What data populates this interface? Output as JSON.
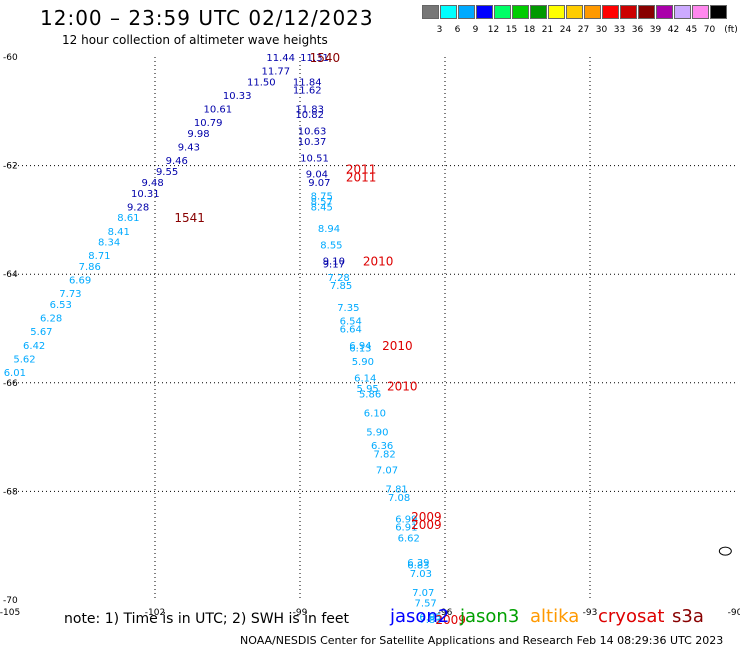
{
  "title": "12:00 – 23:59 UTC 02/12/2023",
  "subtitle": "12 hour collection of altimeter wave heights",
  "note": "note:  1) Time is in UTC;  2) SWH is in feet",
  "footer": "NOAA/NESDIS Center for Satellite Applications and Research    Feb 14 08:29:36 UTC 2023",
  "satellites": [
    {
      "name": "jason2",
      "color": "#0000ff"
    },
    {
      "name": "jason3",
      "color": "#00a000"
    },
    {
      "name": "altika",
      "color": "#ff9900"
    },
    {
      "name": "cryosat",
      "color": "#dd0000"
    },
    {
      "name": "s3a",
      "color": "#880000"
    }
  ],
  "legend": {
    "colors": [
      "#777777",
      "#00ffff",
      "#00aaff",
      "#0000ff",
      "#00ff66",
      "#00cc00",
      "#009900",
      "#ffff00",
      "#ffcc00",
      "#ff9900",
      "#ff0000",
      "#cc0000",
      "#880000",
      "#aa00aa",
      "#ccaaff",
      "#ff88ee",
      "#000000"
    ],
    "labels": [
      "",
      "3",
      "6",
      "9",
      "12",
      "15",
      "18",
      "21",
      "24",
      "27",
      "30",
      "33",
      "36",
      "39",
      "42",
      "45",
      "70",
      "(ft)"
    ]
  },
  "chart_data": {
    "type": "scatter",
    "xlim": [
      -105,
      -90
    ],
    "ylim": [
      -70,
      -60
    ],
    "x_ticks": [
      -105,
      -102,
      -99,
      -96,
      -93,
      -90
    ],
    "y_ticks": [
      -60,
      -62,
      -64,
      -66,
      -68,
      -70
    ],
    "x_tick_labels": [
      "-105",
      "-102",
      "-99",
      "-96",
      "-93",
      "-90"
    ],
    "y_tick_labels": [
      "-60",
      "-62",
      "-64",
      "-66",
      "-68",
      "-70"
    ],
    "grid": true,
    "points": [
      {
        "x": -99.4,
        "y": -60.0,
        "v": "11.44",
        "c": "#0000aa"
      },
      {
        "x": -98.7,
        "y": -60.0,
        "v": "11.31",
        "c": "#0000aa"
      },
      {
        "x": -99.5,
        "y": -60.25,
        "v": "11.77",
        "c": "#0000aa"
      },
      {
        "x": -99.8,
        "y": -60.45,
        "v": "11.50",
        "c": "#0000aa"
      },
      {
        "x": -100.3,
        "y": -60.7,
        "v": "10.33",
        "c": "#0000aa"
      },
      {
        "x": -100.7,
        "y": -60.95,
        "v": "10.61",
        "c": "#0000aa"
      },
      {
        "x": -100.9,
        "y": -61.2,
        "v": "10.79",
        "c": "#0000aa"
      },
      {
        "x": -101.1,
        "y": -61.4,
        "v": "9.98",
        "c": "#0000aa"
      },
      {
        "x": -101.3,
        "y": -61.65,
        "v": "9.43",
        "c": "#0000aa"
      },
      {
        "x": -101.55,
        "y": -61.9,
        "v": "9.46",
        "c": "#0000aa"
      },
      {
        "x": -101.75,
        "y": -62.1,
        "v": "9.55",
        "c": "#0000aa"
      },
      {
        "x": -102.05,
        "y": -62.3,
        "v": "9.48",
        "c": "#0000aa"
      },
      {
        "x": -102.2,
        "y": -62.5,
        "v": "10.31",
        "c": "#0000aa"
      },
      {
        "x": -102.35,
        "y": -62.75,
        "v": "9.28",
        "c": "#0000aa"
      },
      {
        "x": -102.55,
        "y": -62.95,
        "v": "8.61",
        "c": "#00aaff"
      },
      {
        "x": -102.75,
        "y": -63.2,
        "v": "8.41",
        "c": "#00aaff"
      },
      {
        "x": -102.95,
        "y": -63.4,
        "v": "8.34",
        "c": "#00aaff"
      },
      {
        "x": -103.15,
        "y": -63.65,
        "v": "8.71",
        "c": "#00aaff"
      },
      {
        "x": -103.35,
        "y": -63.85,
        "v": "7.86",
        "c": "#00aaff"
      },
      {
        "x": -103.55,
        "y": -64.1,
        "v": "6.69",
        "c": "#00aaff"
      },
      {
        "x": -103.75,
        "y": -64.35,
        "v": "7.73",
        "c": "#00aaff"
      },
      {
        "x": -103.95,
        "y": -64.55,
        "v": "6.53",
        "c": "#00aaff"
      },
      {
        "x": -104.15,
        "y": -64.8,
        "v": "6.28",
        "c": "#00aaff"
      },
      {
        "x": -104.35,
        "y": -65.05,
        "v": "5.67",
        "c": "#00aaff"
      },
      {
        "x": -104.5,
        "y": -65.3,
        "v": "6.42",
        "c": "#00aaff"
      },
      {
        "x": -104.7,
        "y": -65.55,
        "v": "5.62",
        "c": "#00aaff"
      },
      {
        "x": -104.9,
        "y": -65.8,
        "v": "6.01",
        "c": "#00aaff"
      },
      {
        "x": -98.85,
        "y": -60.45,
        "v": "11.84",
        "c": "#0000aa"
      },
      {
        "x": -98.85,
        "y": -60.6,
        "v": "11.62",
        "c": "#0000aa"
      },
      {
        "x": -98.8,
        "y": -60.95,
        "v": "11.83",
        "c": "#0000aa"
      },
      {
        "x": -98.8,
        "y": -61.05,
        "v": "10.82",
        "c": "#0000aa"
      },
      {
        "x": -98.75,
        "y": -61.35,
        "v": "10.63",
        "c": "#0000aa"
      },
      {
        "x": -98.75,
        "y": -61.55,
        "v": "10.37",
        "c": "#0000aa"
      },
      {
        "x": -98.7,
        "y": -61.85,
        "v": "10.51",
        "c": "#0000aa"
      },
      {
        "x": -98.65,
        "y": -62.15,
        "v": "9.04",
        "c": "#0000aa"
      },
      {
        "x": -98.6,
        "y": -62.3,
        "v": "9.07",
        "c": "#0000aa"
      },
      {
        "x": -98.55,
        "y": -62.55,
        "v": "8.75",
        "c": "#00aaff"
      },
      {
        "x": -98.55,
        "y": -62.65,
        "v": "8.57",
        "c": "#00aaff"
      },
      {
        "x": -98.55,
        "y": -62.75,
        "v": "8.45",
        "c": "#00aaff"
      },
      {
        "x": -98.4,
        "y": -63.15,
        "v": "8.94",
        "c": "#00aaff"
      },
      {
        "x": -98.35,
        "y": -63.45,
        "v": "8.55",
        "c": "#00aaff"
      },
      {
        "x": -98.3,
        "y": -63.75,
        "v": "9.10",
        "c": "#0000aa"
      },
      {
        "x": -98.3,
        "y": -63.8,
        "v": "9.17",
        "c": "#0000aa"
      },
      {
        "x": -98.2,
        "y": -64.05,
        "v": "7.28",
        "c": "#00aaff"
      },
      {
        "x": -98.15,
        "y": -64.2,
        "v": "7.85",
        "c": "#00aaff"
      },
      {
        "x": -98.0,
        "y": -64.6,
        "v": "7.35",
        "c": "#00aaff"
      },
      {
        "x": -97.95,
        "y": -64.85,
        "v": "6.54",
        "c": "#00aaff"
      },
      {
        "x": -97.95,
        "y": -65.0,
        "v": "6.64",
        "c": "#00aaff"
      },
      {
        "x": -97.75,
        "y": -65.3,
        "v": "6.94",
        "c": "#00aaff"
      },
      {
        "x": -97.75,
        "y": -65.35,
        "v": "6.13",
        "c": "#00aaff"
      },
      {
        "x": -97.7,
        "y": -65.6,
        "v": "5.90",
        "c": "#00aaff"
      },
      {
        "x": -97.65,
        "y": -65.9,
        "v": "6.14",
        "c": "#00aaff"
      },
      {
        "x": -97.6,
        "y": -66.1,
        "v": "5.95",
        "c": "#00aaff"
      },
      {
        "x": -97.55,
        "y": -66.2,
        "v": "5.86",
        "c": "#00aaff"
      },
      {
        "x": -97.45,
        "y": -66.55,
        "v": "6.10",
        "c": "#00aaff"
      },
      {
        "x": -97.4,
        "y": -66.9,
        "v": "5.90",
        "c": "#00aaff"
      },
      {
        "x": -97.3,
        "y": -67.15,
        "v": "6.36",
        "c": "#00aaff"
      },
      {
        "x": -97.25,
        "y": -67.3,
        "v": "7.82",
        "c": "#00aaff"
      },
      {
        "x": -97.2,
        "y": -67.6,
        "v": "7.07",
        "c": "#00aaff"
      },
      {
        "x": -97.0,
        "y": -67.95,
        "v": "7.81",
        "c": "#00aaff"
      },
      {
        "x": -96.95,
        "y": -68.1,
        "v": "7.08",
        "c": "#00aaff"
      },
      {
        "x": -96.8,
        "y": -68.5,
        "v": "6.99",
        "c": "#00aaff"
      },
      {
        "x": -96.8,
        "y": -68.65,
        "v": "6.91",
        "c": "#00aaff"
      },
      {
        "x": -96.75,
        "y": -68.85,
        "v": "6.62",
        "c": "#00aaff"
      },
      {
        "x": -96.55,
        "y": -69.3,
        "v": "6.39",
        "c": "#00aaff"
      },
      {
        "x": -96.55,
        "y": -69.35,
        "v": "6.83",
        "c": "#00aaff"
      },
      {
        "x": -96.5,
        "y": -69.5,
        "v": "7.03",
        "c": "#00aaff"
      },
      {
        "x": -96.45,
        "y": -69.85,
        "v": "7.07",
        "c": "#00aaff"
      },
      {
        "x": -96.4,
        "y": -70.05,
        "v": "7.57",
        "c": "#00aaff"
      },
      {
        "x": -96.3,
        "y": -70.3,
        "v": "6.95",
        "c": "#00aaff"
      },
      {
        "x": -96.3,
        "y": -70.35,
        "v": "7.83",
        "c": "#00aaff"
      }
    ],
    "time_labels": [
      {
        "x": -98.8,
        "y": -60.0,
        "v": "1540",
        "c": "#880000"
      },
      {
        "x": -101.6,
        "y": -62.95,
        "v": "1541",
        "c": "#880000"
      },
      {
        "x": -98.05,
        "y": -62.05,
        "v": "2011",
        "c": "#dd0000"
      },
      {
        "x": -98.05,
        "y": -62.2,
        "v": "2011",
        "c": "#dd0000"
      },
      {
        "x": -97.7,
        "y": -63.75,
        "v": "2010",
        "c": "#dd0000"
      },
      {
        "x": -97.3,
        "y": -65.3,
        "v": "2010",
        "c": "#dd0000"
      },
      {
        "x": -97.2,
        "y": -66.05,
        "v": "2010",
        "c": "#dd0000"
      },
      {
        "x": -96.7,
        "y": -68.45,
        "v": "2009",
        "c": "#dd0000"
      },
      {
        "x": -96.7,
        "y": -68.6,
        "v": "2009",
        "c": "#dd0000"
      },
      {
        "x": -96.2,
        "y": -70.35,
        "v": "2009",
        "c": "#dd0000"
      }
    ],
    "island": {
      "x": -90.2,
      "y": -69.1
    }
  }
}
